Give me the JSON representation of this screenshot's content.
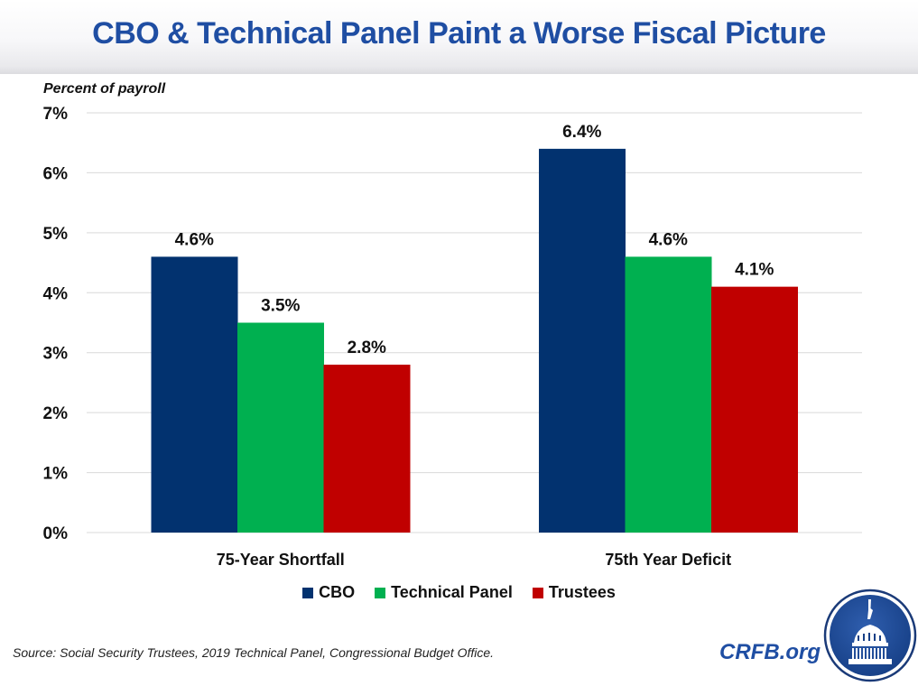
{
  "header": {
    "title": "CBO & Technical Panel Paint a Worse Fiscal Picture"
  },
  "chart_data": {
    "type": "bar",
    "title": "CBO & Technical Panel Paint a Worse Fiscal Picture",
    "ylabel": "Percent of payroll",
    "xlabel": "",
    "ylim": [
      0,
      7
    ],
    "yticks": [
      0,
      1,
      2,
      3,
      4,
      5,
      6,
      7
    ],
    "ytick_labels": [
      "0%",
      "1%",
      "2%",
      "3%",
      "4%",
      "5%",
      "6%",
      "7%"
    ],
    "grid": true,
    "legend_position": "bottom-center",
    "categories": [
      "75-Year Shortfall",
      "75th Year Deficit"
    ],
    "series": [
      {
        "name": "CBO",
        "color": "#02326f",
        "values": [
          4.6,
          6.4
        ],
        "labels": [
          "4.6%",
          "6.4%"
        ]
      },
      {
        "name": "Technical Panel",
        "color": "#00b050",
        "values": [
          3.5,
          4.6
        ],
        "labels": [
          "3.5%",
          "4.6%"
        ]
      },
      {
        "name": "Trustees",
        "color": "#c00000",
        "values": [
          2.8,
          4.1
        ],
        "labels": [
          "2.8%",
          "4.1%"
        ]
      }
    ]
  },
  "legend": {
    "items": [
      {
        "label": "CBO",
        "color": "#02326f"
      },
      {
        "label": "Technical Panel",
        "color": "#00b050"
      },
      {
        "label": "Trustees",
        "color": "#c00000"
      }
    ]
  },
  "footer": {
    "source": "Source: Social Security Trustees, 2019 Technical Panel, Congressional Budget Office.",
    "brand": "CRFB.org",
    "logo_icon": "capitol-dome-icon"
  }
}
